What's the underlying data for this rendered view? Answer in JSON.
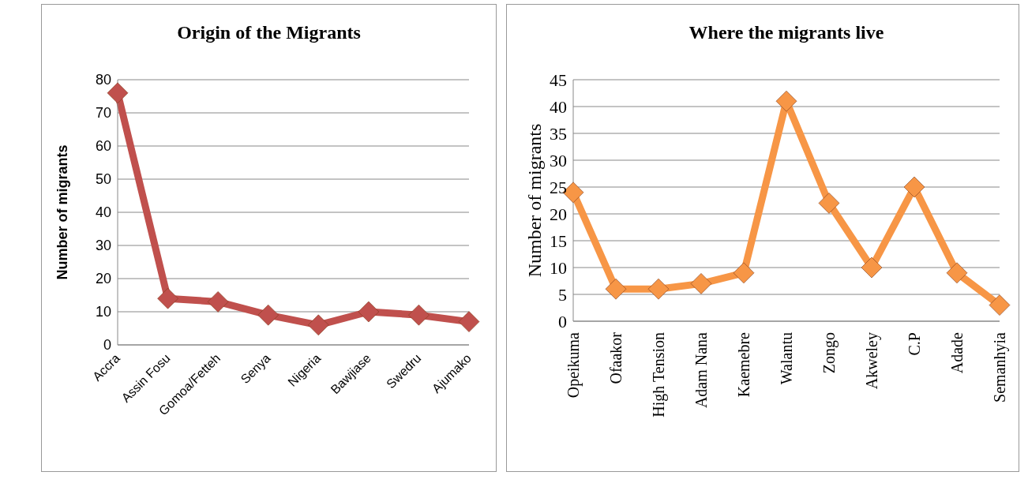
{
  "chart_data": [
    {
      "type": "line",
      "title": "Origin of the Migrants",
      "ylabel": "Number of migrants",
      "categories": [
        "Accra",
        "Assin Fosu",
        "Gomoa/Fetteh",
        "Senya",
        "Nigeria",
        "Bawjiase",
        "Swedru",
        "Ajumako"
      ],
      "series": [
        {
          "color": "#c0504d",
          "values": [
            76,
            14,
            13,
            9,
            6,
            10,
            9,
            7
          ]
        }
      ],
      "ylim": [
        0,
        80
      ],
      "yticks": [
        0,
        10,
        20,
        30,
        40,
        50,
        60,
        70,
        80
      ],
      "grid": "y",
      "marker": "diamond",
      "line_style": "solid"
    },
    {
      "type": "line",
      "title": "Where the migrants live",
      "ylabel": "Number of migrants",
      "categories": [
        "Opeikuma",
        "Ofaakor",
        "High Tension",
        "Adam Nana",
        "Kaemebre",
        "Walantu",
        "Zongo",
        "Akweley",
        "C.P",
        "Adade",
        "Semanhyia"
      ],
      "series": [
        {
          "color": "#f79646",
          "values": [
            24,
            6,
            6,
            7,
            9,
            41,
            22,
            10,
            25,
            9,
            3
          ]
        }
      ],
      "ylim": [
        0,
        45
      ],
      "yticks": [
        0,
        5,
        10,
        15,
        20,
        25,
        30,
        35,
        40,
        45
      ],
      "grid": "y",
      "marker": "diamond",
      "line_style": "solid"
    }
  ]
}
